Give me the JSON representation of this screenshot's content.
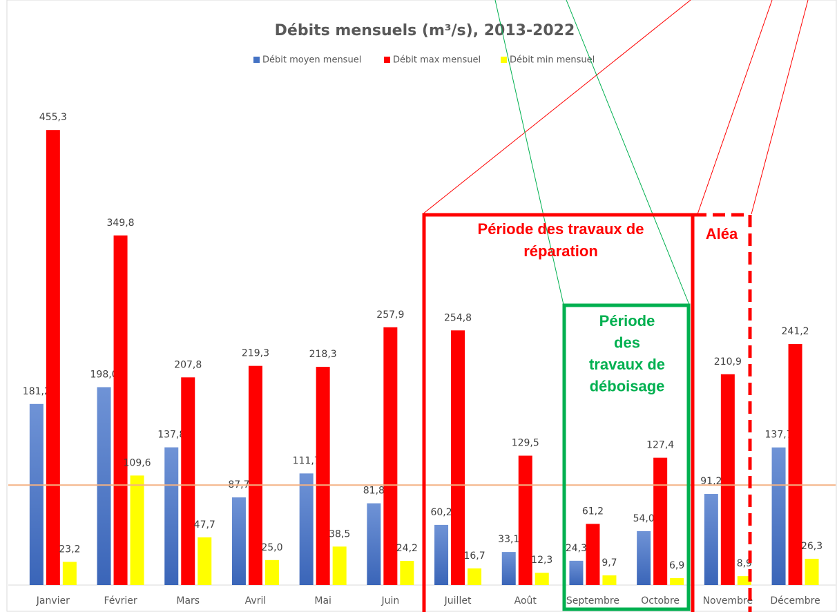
{
  "chart_data": {
    "type": "bar",
    "title": "Débits mensuels (m³/s), 2013-2022",
    "categories": [
      "Janvier",
      "Février",
      "Mars",
      "Avril",
      "Mai",
      "Juin",
      "Juillet",
      "Août",
      "Septembre",
      "Octobre",
      "Novembre",
      "Décembre"
    ],
    "series": [
      {
        "name": "Débit moyen mensuel",
        "color": "#4472c4",
        "values": [
          181.2,
          198.0,
          137.8,
          87.7,
          111.7,
          81.8,
          60.2,
          33.1,
          24.3,
          54.0,
          91.2,
          137.7
        ],
        "value_labels": [
          "181,2",
          "198,0",
          "137,8",
          "87,7",
          "111,7",
          "81,8",
          "60,2",
          "33,1",
          "24,3",
          "54,0",
          "91,2",
          "137,7"
        ]
      },
      {
        "name": "Débit max mensuel",
        "color": "#ff0000",
        "values": [
          455.3,
          349.8,
          207.8,
          219.3,
          218.3,
          257.9,
          254.8,
          129.5,
          61.2,
          127.4,
          210.9,
          241.2
        ],
        "value_labels": [
          "455,3",
          "349,8",
          "207,8",
          "219,3",
          "218,3",
          "257,9",
          "254,8",
          "129,5",
          "61,2",
          "127,4",
          "210,9",
          "241,2"
        ]
      },
      {
        "name": "Débit min mensuel",
        "color": "#ffff00",
        "values": [
          23.2,
          109.6,
          47.7,
          25.0,
          38.5,
          24.2,
          16.7,
          12.3,
          9.7,
          6.9,
          8.9,
          26.3
        ],
        "value_labels": [
          "23,2",
          "109,6",
          "47,7",
          "25,0",
          "38,5",
          "24,2",
          "16,7",
          "12,3",
          "9,7",
          "6,9",
          "8,9",
          "26,3"
        ]
      }
    ],
    "ylim": [
      0,
      500
    ],
    "reference_line": {
      "value": 100,
      "color": "#f4b183"
    },
    "annotations": [
      {
        "lines": [
          "Période des travaux de",
          "réparation"
        ],
        "color": "#ff0000"
      },
      {
        "lines": [
          "Période",
          "des",
          "travaux de",
          "déboisage"
        ],
        "color": "#00b050"
      },
      {
        "lines": [
          "Aléa"
        ],
        "color": "#ff0000"
      }
    ]
  }
}
